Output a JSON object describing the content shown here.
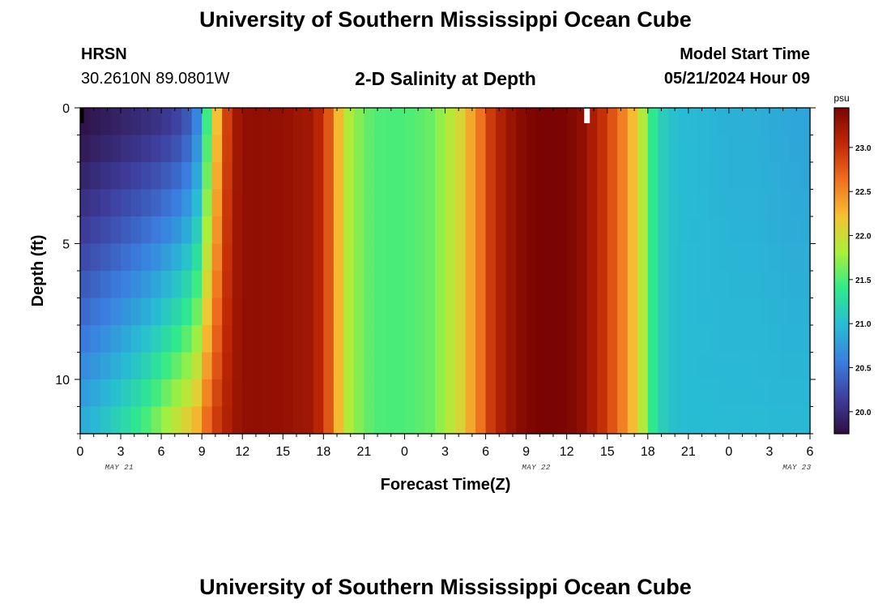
{
  "page": {
    "title": "University of Southern Mississippi Ocean Cube",
    "footer_title": "University of Southern Mississippi Ocean Cube",
    "station": "HRSN",
    "coords": "30.2610N  89.0801W",
    "start_label": "Model Start Time",
    "start_value": "05/21/2024 Hour 09"
  },
  "chart_data": {
    "type": "heatmap",
    "title": "2-D Salinity at Depth",
    "xlabel": "Forecast Time(Z)",
    "ylabel": "Depth (ft)",
    "x_tick_labels": [
      "0",
      "3",
      "6",
      "9",
      "12",
      "15",
      "18",
      "21",
      "0",
      "3",
      "6",
      "9",
      "12",
      "15",
      "18",
      "21",
      "0",
      "3",
      "6"
    ],
    "date_labels": [
      {
        "label": "MAY 21",
        "x_hour": 4.5
      },
      {
        "label": "MAY 22",
        "x_hour": 52.5
      },
      {
        "label": "MAY 23",
        "x_hour": 82.5
      }
    ],
    "xlim_hours": [
      0,
      54
    ],
    "y_ticks": [
      0,
      5,
      10
    ],
    "ylim": [
      0,
      12
    ],
    "time_step_hours": 0.75,
    "depth_levels": 12,
    "current_time_hour": 37.5,
    "colorbar": {
      "unit": "psu",
      "ticks": [
        20.0,
        20.5,
        21.0,
        21.5,
        22.0,
        22.5,
        23.0
      ],
      "range": [
        19.75,
        23.45
      ],
      "colors": [
        "#2d0f3f",
        "#3e3f9e",
        "#3a7fe0",
        "#28bcd4",
        "#2fea8b",
        "#a8f03a",
        "#f5c233",
        "#f0701f",
        "#c02904",
        "#7a0403"
      ]
    },
    "salinity_profile": {
      "time_hours": [
        0,
        1.5,
        3,
        4.5,
        6,
        7.5,
        8.5,
        9,
        9.5,
        10,
        10.5,
        11,
        11.5,
        12,
        12.5,
        13,
        15,
        17,
        18,
        18.5,
        19,
        19.5,
        20,
        21,
        22,
        24,
        26,
        28,
        29,
        30,
        30.5,
        31,
        32,
        33,
        34,
        35,
        36,
        37,
        38,
        39,
        40,
        41,
        41.5,
        42,
        42.5,
        43,
        44,
        46,
        48,
        50,
        52,
        54
      ],
      "surface": [
        19.78,
        19.86,
        19.93,
        20.0,
        20.07,
        20.22,
        20.5,
        20.95,
        21.6,
        22.1,
        22.6,
        23.0,
        23.2,
        23.3,
        23.32,
        23.33,
        23.3,
        23.22,
        23.0,
        22.7,
        22.35,
        22.0,
        21.8,
        21.6,
        21.5,
        21.48,
        21.6,
        22.0,
        22.4,
        22.75,
        23.0,
        23.1,
        23.3,
        23.4,
        23.45,
        23.45,
        23.43,
        23.35,
        23.15,
        22.9,
        22.6,
        22.2,
        21.95,
        21.6,
        21.3,
        21.15,
        21.0,
        20.95,
        20.9,
        20.9,
        20.85,
        20.82
      ],
      "bottom": [
        20.85,
        21.0,
        21.2,
        21.4,
        21.7,
        22.0,
        22.2,
        22.5,
        22.7,
        22.9,
        23.05,
        23.15,
        23.25,
        23.3,
        23.32,
        23.33,
        23.3,
        23.22,
        23.0,
        22.7,
        22.35,
        22.0,
        21.8,
        21.6,
        21.5,
        21.48,
        21.6,
        22.0,
        22.4,
        22.75,
        23.0,
        23.1,
        23.3,
        23.4,
        23.45,
        23.45,
        23.43,
        23.35,
        23.15,
        22.9,
        22.6,
        22.2,
        21.95,
        21.6,
        21.3,
        21.15,
        21.0,
        20.98,
        20.97,
        20.97,
        20.96,
        20.96
      ]
    }
  }
}
